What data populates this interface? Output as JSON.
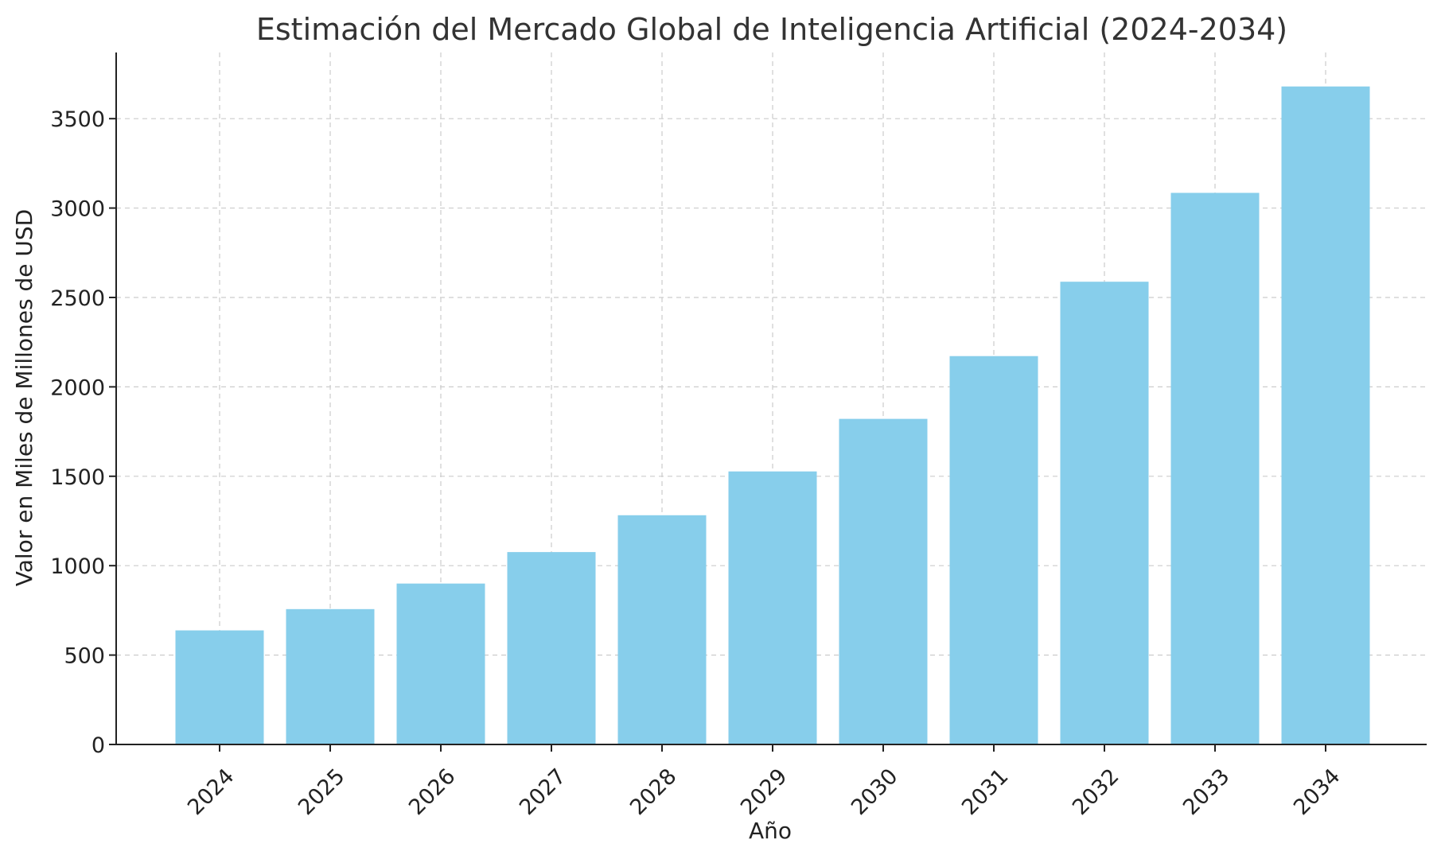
{
  "chart_data": {
    "type": "bar",
    "title": "Estimación del Mercado Global de Inteligencia Artificial (2024-2034)",
    "xlabel": "Año",
    "ylabel": "Valor en Miles de Millones de USD",
    "categories": [
      "2024",
      "2025",
      "2026",
      "2027",
      "2028",
      "2029",
      "2030",
      "2031",
      "2032",
      "2033",
      "2034"
    ],
    "values": [
      638,
      757,
      900,
      1076,
      1282,
      1527,
      1821,
      2172,
      2588,
      3085,
      3680
    ],
    "ylim": [
      0,
      3870
    ],
    "yticks": [
      0,
      500,
      1000,
      1500,
      2000,
      2500,
      3000,
      3500
    ],
    "grid": true,
    "bar_color": "#87ceeb",
    "x_tick_rotation_deg": 45
  }
}
